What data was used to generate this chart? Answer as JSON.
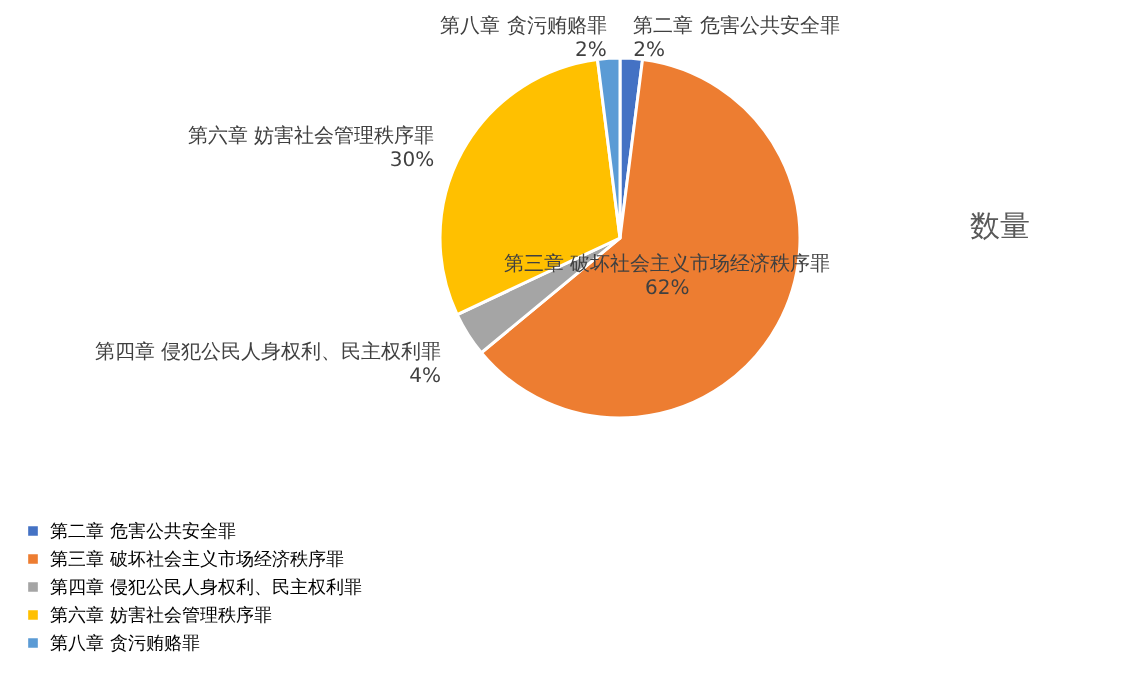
{
  "chart_data": {
    "type": "pie",
    "title": "数量",
    "categories": [
      "第二章 危害公共安全罪",
      "第三章 破坏社会主义市场经济秩序罪",
      "第四章 侵犯公民人身权利、民主权利罪",
      "第六章 妨害社会管理秩序罪",
      "第八章 贪污贿赂罪"
    ],
    "values": [
      2,
      62,
      4,
      30,
      2
    ],
    "colors": [
      "#4472c4",
      "#ed7d31",
      "#a5a5a5",
      "#ffc000",
      "#5b9bd5"
    ],
    "value_labels": [
      "2%",
      "62%",
      "4%",
      "30%",
      "2%"
    ],
    "legend": "bottom"
  }
}
